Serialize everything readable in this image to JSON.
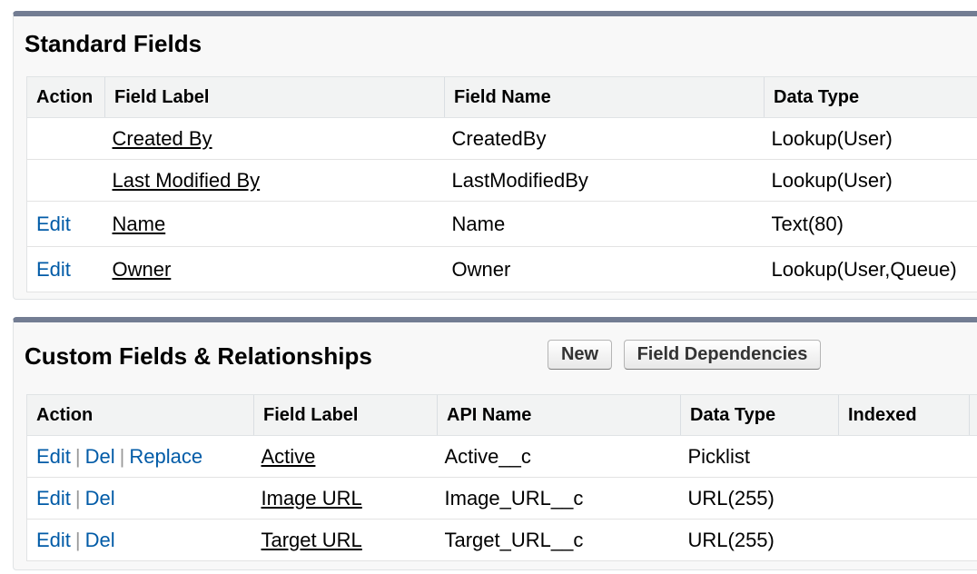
{
  "standard": {
    "title": "Standard Fields",
    "headers": [
      "Action",
      "Field Label",
      "Field Name",
      "Data Type"
    ],
    "rows": [
      {
        "action": "",
        "label": "Created By",
        "name": "CreatedBy",
        "type": "Lookup(User)"
      },
      {
        "action": "",
        "label": "Last Modified By",
        "name": "LastModifiedBy",
        "type": "Lookup(User)"
      },
      {
        "action": "Edit",
        "label": "Name",
        "name": "Name",
        "type": "Text(80)"
      },
      {
        "action": "Edit",
        "label": "Owner",
        "name": "Owner",
        "type": "Lookup(User,Queue)"
      }
    ]
  },
  "custom": {
    "title": "Custom Fields & Relationships",
    "new_label": "New",
    "deps_label": "Field Dependencies",
    "headers": [
      "Action",
      "Field Label",
      "API Name",
      "Data Type",
      "Indexed"
    ],
    "separator": "|",
    "rows": [
      {
        "edit": "Edit",
        "del": "Del",
        "replace": "Replace",
        "label": "Active",
        "api": "Active__c",
        "type": "Picklist",
        "indexed": ""
      },
      {
        "edit": "Edit",
        "del": "Del",
        "label": "Image URL",
        "api": "Image_URL__c",
        "type": "URL(255)",
        "indexed": ""
      },
      {
        "edit": "Edit",
        "del": "Del",
        "label": "Target URL",
        "api": "Target_URL__c",
        "type": "URL(255)",
        "indexed": ""
      }
    ]
  },
  "colors": {
    "panel_border": "#737d93",
    "link": "#015ba7",
    "header_bg": "#f2f3f3"
  }
}
